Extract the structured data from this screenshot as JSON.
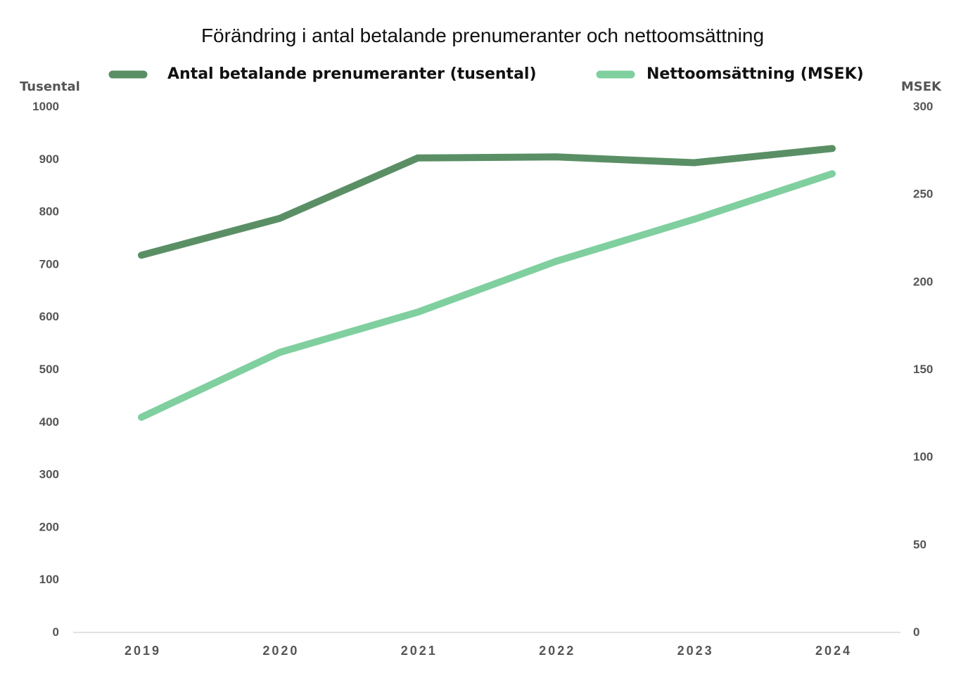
{
  "chart_data": {
    "type": "line",
    "title": "Förändring i antal betalande prenumeranter och nettoomsättning",
    "categories": [
      "2019",
      "2020",
      "2021",
      "2022",
      "2023",
      "2024"
    ],
    "y_left": {
      "label": "Tusental",
      "range": [
        0,
        1000
      ],
      "ticks": [
        "0",
        "100",
        "200",
        "300",
        "400",
        "500",
        "600",
        "700",
        "800",
        "900",
        "1000"
      ]
    },
    "y_right": {
      "label": "MSEK",
      "range": [
        0,
        300
      ],
      "ticks": [
        "0",
        "50",
        "100",
        "150",
        "200",
        "250",
        "300"
      ]
    },
    "grid": false,
    "legend_position": "top",
    "series": [
      {
        "name": "Antal betalande prenumeranter (tusental)",
        "axis": "left",
        "color": "#5a8f65",
        "values": [
          715,
          785,
          900,
          902,
          891,
          918
        ]
      },
      {
        "name": "Nettoomsättning (MSEK)",
        "axis": "right",
        "color": "#80cf9f",
        "values": [
          122,
          159,
          182,
          211,
          235,
          261
        ]
      }
    ]
  }
}
